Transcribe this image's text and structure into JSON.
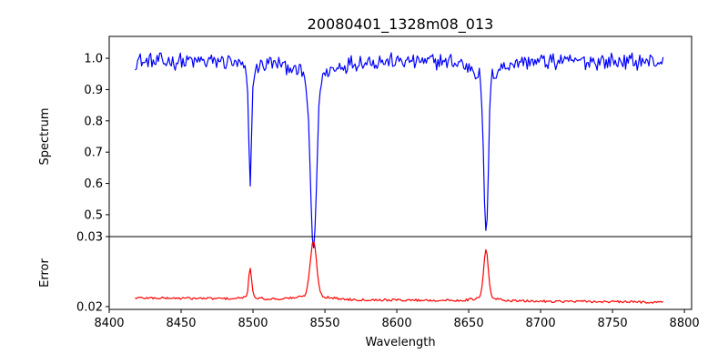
{
  "chart_data": {
    "type": "line",
    "title": "20080401_1328m08_013",
    "xlabel": "Wavelength",
    "xlim": [
      8400,
      8805
    ],
    "xticks": [
      8400,
      8450,
      8500,
      8550,
      8600,
      8650,
      8700,
      8750,
      8800
    ],
    "x_range": [
      8418,
      8786
    ],
    "panels": [
      {
        "name": "spectrum-panel",
        "ylabel": "Spectrum",
        "ylim": [
          0.43,
          1.07
        ],
        "yticks": [
          0.5,
          0.6,
          0.7,
          0.8,
          0.9,
          1.0
        ],
        "ytick_labels": [
          "0.5",
          "0.6",
          "0.7",
          "0.8",
          "0.9",
          "1.0"
        ],
        "series": [
          {
            "color": "#0000ff",
            "baseline": 0.99,
            "noise": 0.022,
            "dips": [
              {
                "x": 8498,
                "depth": 0.36,
                "width": 1.0
              },
              {
                "x": 8542,
                "depth": 0.55,
                "width": 2.2
              },
              {
                "x": 8662,
                "depth": 0.51,
                "width": 1.6
              }
            ],
            "points": [
              [
                8418,
                0.985
              ],
              [
                8425,
                0.99
              ],
              [
                8435,
                0.995
              ],
              [
                8450,
                1.0
              ],
              [
                8470,
                0.99
              ],
              [
                8485,
                0.98
              ],
              [
                8493,
                0.96
              ],
              [
                8498,
                0.635
              ],
              [
                8502,
                0.93
              ],
              [
                8510,
                0.98
              ],
              [
                8525,
                1.0
              ],
              [
                8535,
                0.975
              ],
              [
                8538,
                0.93
              ],
              [
                8542,
                0.445
              ],
              [
                8546,
                0.92
              ],
              [
                8555,
                0.975
              ],
              [
                8575,
                1.0
              ],
              [
                8600,
                1.0
              ],
              [
                8625,
                1.02
              ],
              [
                8640,
                1.01
              ],
              [
                8655,
                0.97
              ],
              [
                8659,
                0.93
              ],
              [
                8662,
                0.485
              ],
              [
                8666,
                0.9
              ],
              [
                8675,
                0.985
              ],
              [
                8700,
                1.0
              ],
              [
                8725,
                0.98
              ],
              [
                8750,
                0.985
              ],
              [
                8786,
                1.0
              ]
            ]
          }
        ]
      },
      {
        "name": "error-panel",
        "ylabel": "Error",
        "ylim": [
          0.0196,
          0.03
        ],
        "yticks": [
          0.02,
          0.03
        ],
        "ytick_labels": [
          "0.02",
          "0.03"
        ],
        "series": [
          {
            "color": "#ff0000",
            "baseline": 0.02125,
            "slope": -1.7e-06,
            "noise": 0.00017,
            "peaks": [
              {
                "x": 8498,
                "height": 0.0042,
                "width": 1.0
              },
              {
                "x": 8542,
                "height": 0.0079,
                "width": 2.2
              },
              {
                "x": 8662,
                "height": 0.0069,
                "width": 1.6
              }
            ],
            "points": [
              [
                8418,
                0.0212
              ],
              [
                8450,
                0.0213
              ],
              [
                8490,
                0.0211
              ],
              [
                8498,
                0.0255
              ],
              [
                8505,
                0.0211
              ],
              [
                8530,
                0.021
              ],
              [
                8538,
                0.0218
              ],
              [
                8542,
                0.0298
              ],
              [
                8548,
                0.0214
              ],
              [
                8575,
                0.0211
              ],
              [
                8620,
                0.0209
              ],
              [
                8655,
                0.0211
              ],
              [
                8662,
                0.0286
              ],
              [
                8670,
                0.021
              ],
              [
                8700,
                0.0206
              ],
              [
                8750,
                0.0205
              ],
              [
                8786,
                0.0203
              ]
            ]
          }
        ]
      }
    ]
  }
}
